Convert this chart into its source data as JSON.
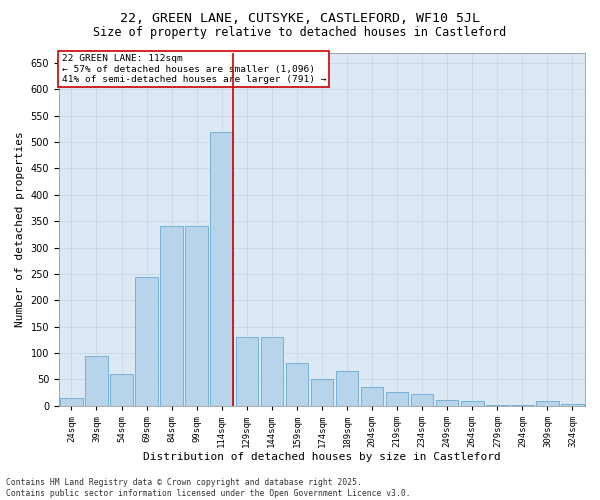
{
  "title_line1": "22, GREEN LANE, CUTSYKE, CASTLEFORD, WF10 5JL",
  "title_line2": "Size of property relative to detached houses in Castleford",
  "xlabel": "Distribution of detached houses by size in Castleford",
  "ylabel": "Number of detached properties",
  "bar_labels": [
    "24sqm",
    "39sqm",
    "54sqm",
    "69sqm",
    "84sqm",
    "99sqm",
    "114sqm",
    "129sqm",
    "144sqm",
    "159sqm",
    "174sqm",
    "189sqm",
    "204sqm",
    "219sqm",
    "234sqm",
    "249sqm",
    "264sqm",
    "279sqm",
    "294sqm",
    "309sqm",
    "324sqm"
  ],
  "bar_values": [
    15,
    95,
    60,
    245,
    340,
    340,
    520,
    130,
    130,
    80,
    50,
    65,
    35,
    25,
    22,
    10,
    8,
    2,
    2,
    8,
    3
  ],
  "bar_color": "#b8d4ea",
  "bar_edgecolor": "#6aaad4",
  "property_line_color": "#cc0000",
  "annotation_title": "22 GREEN LANE: 112sqm",
  "annotation_line1": "← 57% of detached houses are smaller (1,096)",
  "annotation_line2": "41% of semi-detached houses are larger (791) →",
  "annotation_box_color": "#ffffff",
  "annotation_box_edgecolor": "#cc0000",
  "ylim": [
    0,
    670
  ],
  "yticks": [
    0,
    50,
    100,
    150,
    200,
    250,
    300,
    350,
    400,
    450,
    500,
    550,
    600,
    650
  ],
  "plot_background": "#dde8f5",
  "footer_line1": "Contains HM Land Registry data © Crown copyright and database right 2025.",
  "footer_line2": "Contains public sector information licensed under the Open Government Licence v3.0.",
  "title_fontsize": 9.5,
  "subtitle_fontsize": 8.5,
  "label_fontsize": 6.5,
  "ylabel_fontsize": 8,
  "xlabel_fontsize": 8,
  "annotation_fontsize": 6.8,
  "footer_fontsize": 5.8
}
